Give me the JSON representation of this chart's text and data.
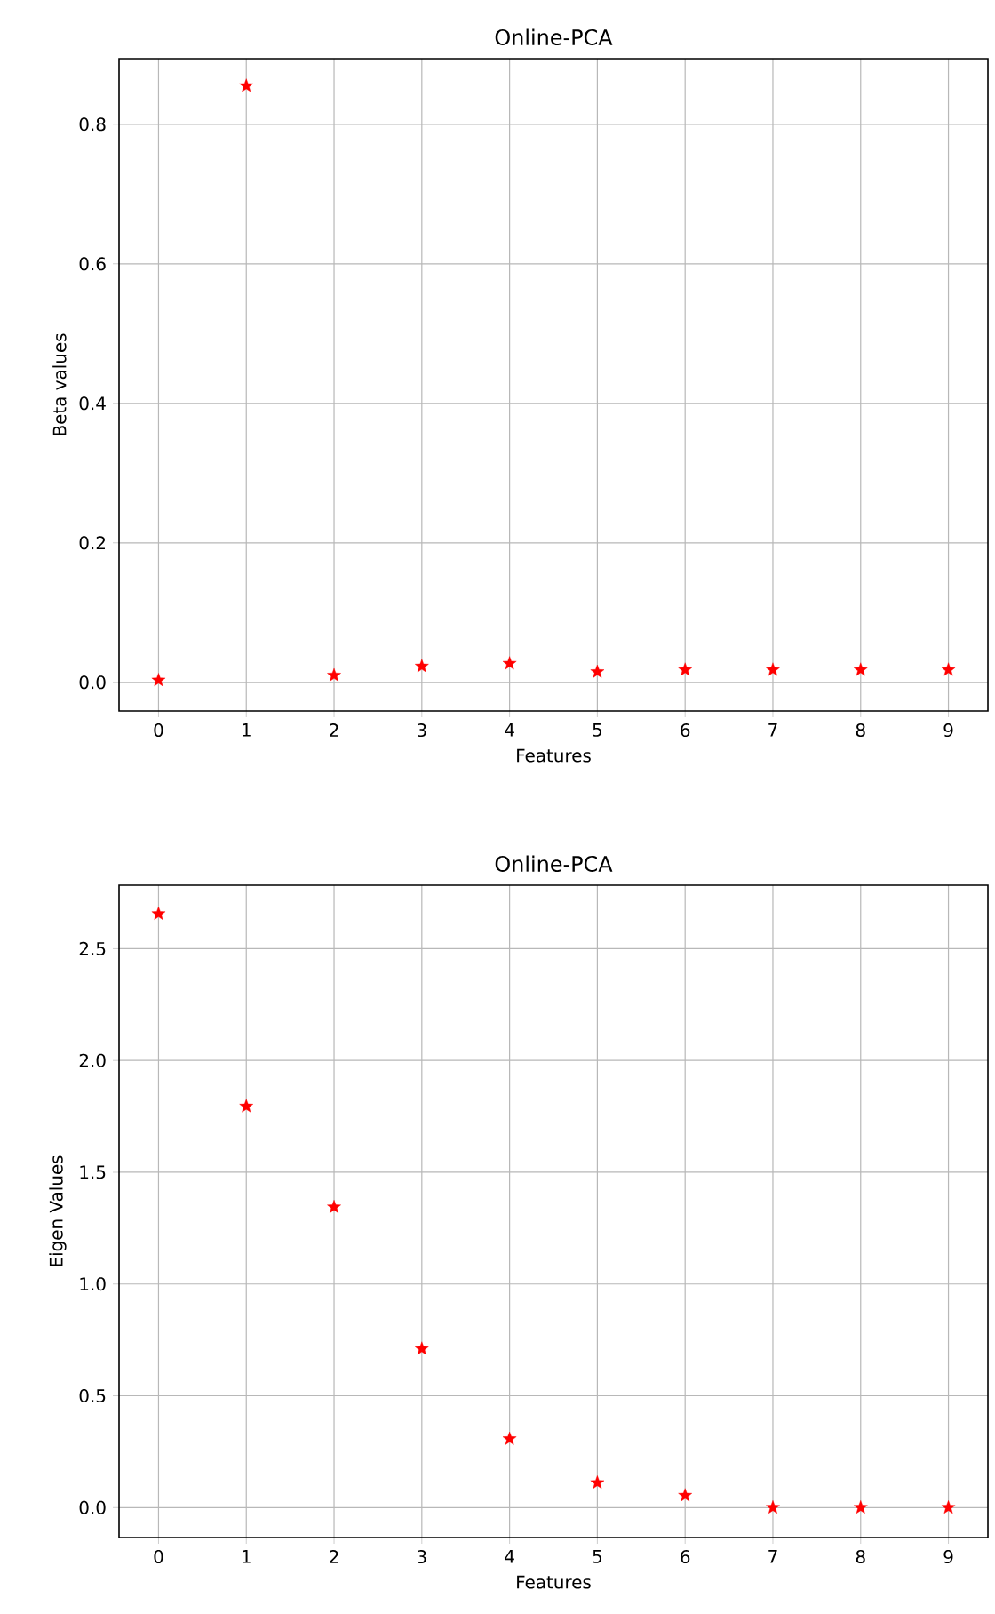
{
  "chart_data": [
    {
      "type": "scatter",
      "title": "Online-PCA",
      "xlabel": "Features",
      "ylabel": "Beta values",
      "x": [
        0,
        1,
        2,
        3,
        4,
        5,
        6,
        7,
        8,
        9
      ],
      "series": [
        {
          "color": "#ff0000",
          "values": [
            0.003,
            0.855,
            0.01,
            0.023,
            0.027,
            0.015,
            0.018,
            0.018,
            0.018,
            0.018
          ]
        }
      ],
      "xlim": [
        -0.45,
        9.45
      ],
      "xticks": [
        0,
        1,
        2,
        3,
        4,
        5,
        6,
        7,
        8,
        9
      ],
      "ylim": [
        -0.041,
        0.894
      ],
      "yticks": [
        {
          "value": 0,
          "label": "0.0"
        },
        0.2,
        0.4,
        0.6,
        0.8
      ],
      "grid": true,
      "marker": "star"
    },
    {
      "type": "scatter",
      "title": "Online-PCA",
      "xlabel": "Features",
      "ylabel": "Eigen Values",
      "x": [
        0,
        1,
        2,
        3,
        4,
        5,
        6,
        7,
        8,
        9
      ],
      "series": [
        {
          "color": "#ff0000",
          "values": [
            2.656,
            1.795,
            1.344,
            0.71,
            0.307,
            0.111,
            0.054,
            0.0,
            0.0,
            0.0
          ]
        }
      ],
      "xlim": [
        -0.45,
        9.45
      ],
      "xticks": [
        0,
        1,
        2,
        3,
        4,
        5,
        6,
        7,
        8,
        9
      ],
      "ylim": [
        -0.134,
        2.784
      ],
      "yticks": [
        {
          "value": 0,
          "label": "0.0"
        },
        0.5,
        {
          "value": 1,
          "label": "1.0"
        },
        1.5,
        {
          "value": 2,
          "label": "2.0"
        },
        2.5
      ],
      "grid": true,
      "marker": "star"
    }
  ]
}
